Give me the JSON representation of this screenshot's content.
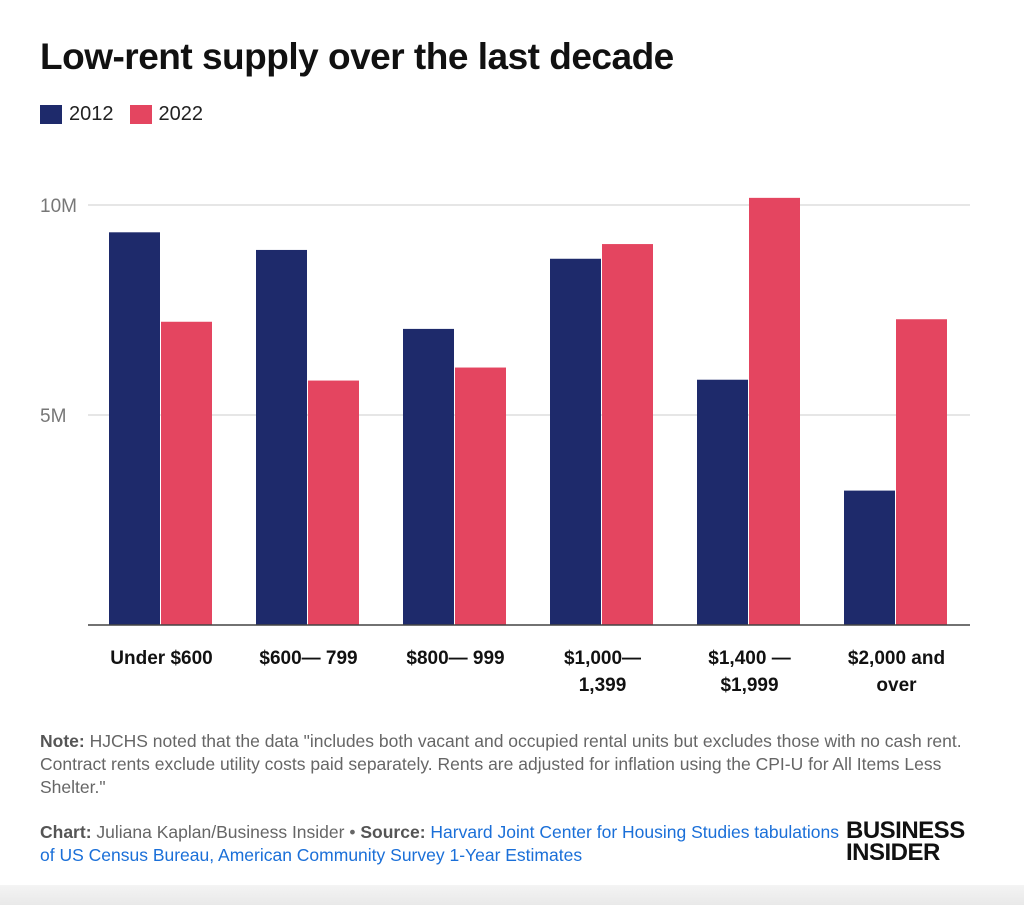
{
  "title": "Low-rent supply over the last decade",
  "colors": {
    "series_2012": "#1e2a6b",
    "series_2022": "#e44560",
    "grid": "#cccccc",
    "link": "#1a6fd8"
  },
  "chart_data": {
    "type": "bar",
    "categories": [
      [
        "Under $600"
      ],
      [
        "$600— 799"
      ],
      [
        "$800— 999"
      ],
      [
        "$1,000—",
        "1,399"
      ],
      [
        "$1,400 —",
        "$1,999"
      ],
      [
        "$2,000 and",
        "over"
      ]
    ],
    "series": [
      {
        "name": "2012",
        "values": [
          9.35,
          8.93,
          7.05,
          8.72,
          5.84,
          3.2
        ]
      },
      {
        "name": "2022",
        "values": [
          7.22,
          5.82,
          6.13,
          9.07,
          10.17,
          7.28
        ]
      }
    ],
    "unit": "M",
    "ylim": [
      0,
      10.5
    ],
    "yticks": [
      {
        "value": 10,
        "label": "10M"
      },
      {
        "value": 5,
        "label": "5M"
      }
    ],
    "grid": true,
    "legend": "top-left"
  },
  "note": {
    "label": "Note:",
    "text": "HJCHS noted that the data \"includes both vacant and occupied rental units but excludes those with no cash rent. Contract rents exclude utility costs paid separately. Rents are adjusted for inflation using the CPI-U for All Items Less Shelter.\""
  },
  "credits": {
    "chart_label": "Chart:",
    "chart_text": "Juliana Kaplan/Business Insider",
    "separator": "•",
    "source_label": "Source:",
    "source_text": "Harvard Joint Center for Housing Studies tabulations of US Census Bureau, American Community Survey 1-Year Estimates"
  },
  "logo": {
    "line1": "BUSINESS",
    "line2": "INSIDER"
  }
}
